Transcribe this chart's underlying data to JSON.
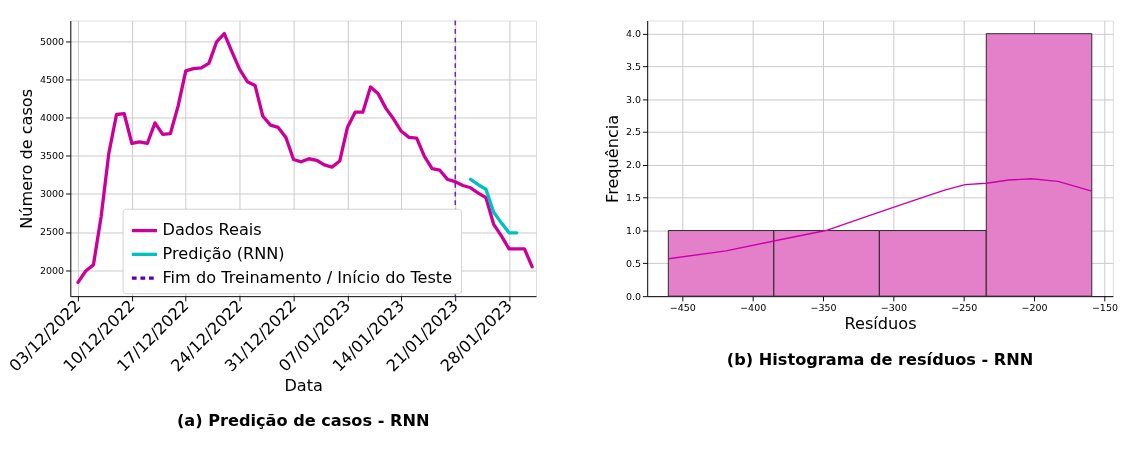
{
  "chart_data": [
    {
      "type": "line",
      "title": "(a) Predição de casos - RNN",
      "xlabel": "Data",
      "ylabel": "Número de casos",
      "x": [
        "2022-12-03",
        "2022-12-04",
        "2022-12-05",
        "2022-12-06",
        "2022-12-07",
        "2022-12-08",
        "2022-12-09",
        "2022-12-10",
        "2022-12-11",
        "2022-12-12",
        "2022-12-13",
        "2022-12-14",
        "2022-12-15",
        "2022-12-16",
        "2022-12-17",
        "2022-12-18",
        "2022-12-19",
        "2022-12-20",
        "2022-12-21",
        "2022-12-22",
        "2022-12-23",
        "2022-12-24",
        "2022-12-25",
        "2022-12-26",
        "2022-12-27",
        "2022-12-28",
        "2022-12-29",
        "2022-12-30",
        "2022-12-31",
        "2023-01-01",
        "2023-01-02",
        "2023-01-03",
        "2023-01-04",
        "2023-01-05",
        "2023-01-06",
        "2023-01-07",
        "2023-01-08",
        "2023-01-09",
        "2023-01-10",
        "2023-01-11",
        "2023-01-12",
        "2023-01-13",
        "2023-01-14",
        "2023-01-15",
        "2023-01-16",
        "2023-01-17",
        "2023-01-18",
        "2023-01-19",
        "2023-01-20",
        "2023-01-21",
        "2023-01-22",
        "2023-01-23",
        "2023-01-24",
        "2023-01-25",
        "2023-01-26",
        "2023-01-27",
        "2023-01-28",
        "2023-01-29",
        "2023-01-30",
        "2023-01-31"
      ],
      "series": [
        {
          "name": "Dados Reais",
          "color": "#cc0099",
          "values": [
            1840,
            1990,
            2070,
            2700,
            3530,
            4040,
            4050,
            3660,
            3680,
            3660,
            3930,
            3780,
            3790,
            4150,
            4610,
            4640,
            4650,
            4710,
            4990,
            5100,
            4860,
            4630,
            4470,
            4420,
            4020,
            3900,
            3870,
            3740,
            3450,
            3420,
            3460,
            3440,
            3380,
            3350,
            3430,
            3870,
            4070,
            4070,
            4400,
            4310,
            4120,
            3980,
            3820,
            3740,
            3730,
            3490,
            3330,
            3310,
            3190,
            3160,
            3110,
            3080,
            3010,
            2950,
            2600,
            2450,
            2280,
            2280,
            2280,
            2045
          ]
        },
        {
          "name": "Predição (RNN)",
          "color": "#00c0c0",
          "x": [
            "2023-01-23",
            "2023-01-24",
            "2023-01-25",
            "2023-01-26",
            "2023-01-27",
            "2023-01-28",
            "2023-01-29"
          ],
          "values": [
            3190,
            3120,
            3060,
            2760,
            2620,
            2490,
            2490
          ]
        }
      ],
      "xlim": [
        "2022-12-02",
        "2023-01-31T12:00"
      ],
      "ylim": [
        1660,
        5270
      ],
      "xticks": [
        {
          "value": "2022-12-03",
          "label": "03/12/2022"
        },
        {
          "value": "2022-12-10",
          "label": "10/12/2022"
        },
        {
          "value": "2022-12-17",
          "label": "17/12/2022"
        },
        {
          "value": "2022-12-24",
          "label": "24/12/2022"
        },
        {
          "value": "2022-12-31",
          "label": "31/12/2022"
        },
        {
          "value": "2023-01-07",
          "label": "07/01/2023"
        },
        {
          "value": "2023-01-14",
          "label": "14/01/2023"
        },
        {
          "value": "2023-01-21",
          "label": "21/01/2023"
        },
        {
          "value": "2023-01-28",
          "label": "28/01/2023"
        }
      ],
      "yticks": [
        2000,
        2500,
        3000,
        3500,
        4000,
        4500,
        5000
      ],
      "ref_lines": [
        {
          "axis": "x",
          "value": "2023-01-21",
          "label": "Fim do Treinamento / Início do Teste",
          "color": "#5b00a8",
          "line_style": "dashed"
        }
      ],
      "grid": true,
      "legend": "bottom",
      "line_style": "solid"
    },
    {
      "type": "histogram",
      "title": "(b) Histograma de resíduos - RNN",
      "xlabel": "Resíduos",
      "ylabel": "Frequência",
      "bins": [
        -460,
        -385,
        -310,
        -234,
        -159
      ],
      "values": [
        1,
        1,
        1,
        4
      ],
      "color": "#e47fc9",
      "series": [
        {
          "type": "line",
          "color": "#cc00aa",
          "x": [
            -460,
            -419,
            -385,
            -348,
            -310,
            -277,
            -263,
            -249,
            -234,
            -218,
            -202,
            -183,
            -159
          ],
          "values": [
            0.57,
            0.69,
            0.84,
            1.0,
            1.28,
            1.52,
            1.62,
            1.7,
            1.72,
            1.77,
            1.79,
            1.75,
            1.6
          ]
        }
      ],
      "xlim": [
        -475,
        -144
      ],
      "ylim": [
        0,
        4.2
      ],
      "xticks": [
        {
          "value": -450,
          "label": "−450"
        },
        {
          "value": -400,
          "label": "−400"
        },
        {
          "value": -350,
          "label": "−350"
        },
        {
          "value": -300,
          "label": "−300"
        },
        {
          "value": -250,
          "label": "−250"
        },
        {
          "value": -200,
          "label": "−200"
        },
        {
          "value": -150,
          "label": "−150"
        }
      ],
      "yticks": [
        {
          "value": 0,
          "label": "0.0"
        },
        0.5,
        {
          "value": 1,
          "label": "1.0"
        },
        1.5,
        {
          "value": 2,
          "label": "2.0"
        },
        2.5,
        {
          "value": 3,
          "label": "3.0"
        },
        3.5,
        {
          "value": 4,
          "label": "4.0"
        }
      ],
      "grid": true
    }
  ]
}
